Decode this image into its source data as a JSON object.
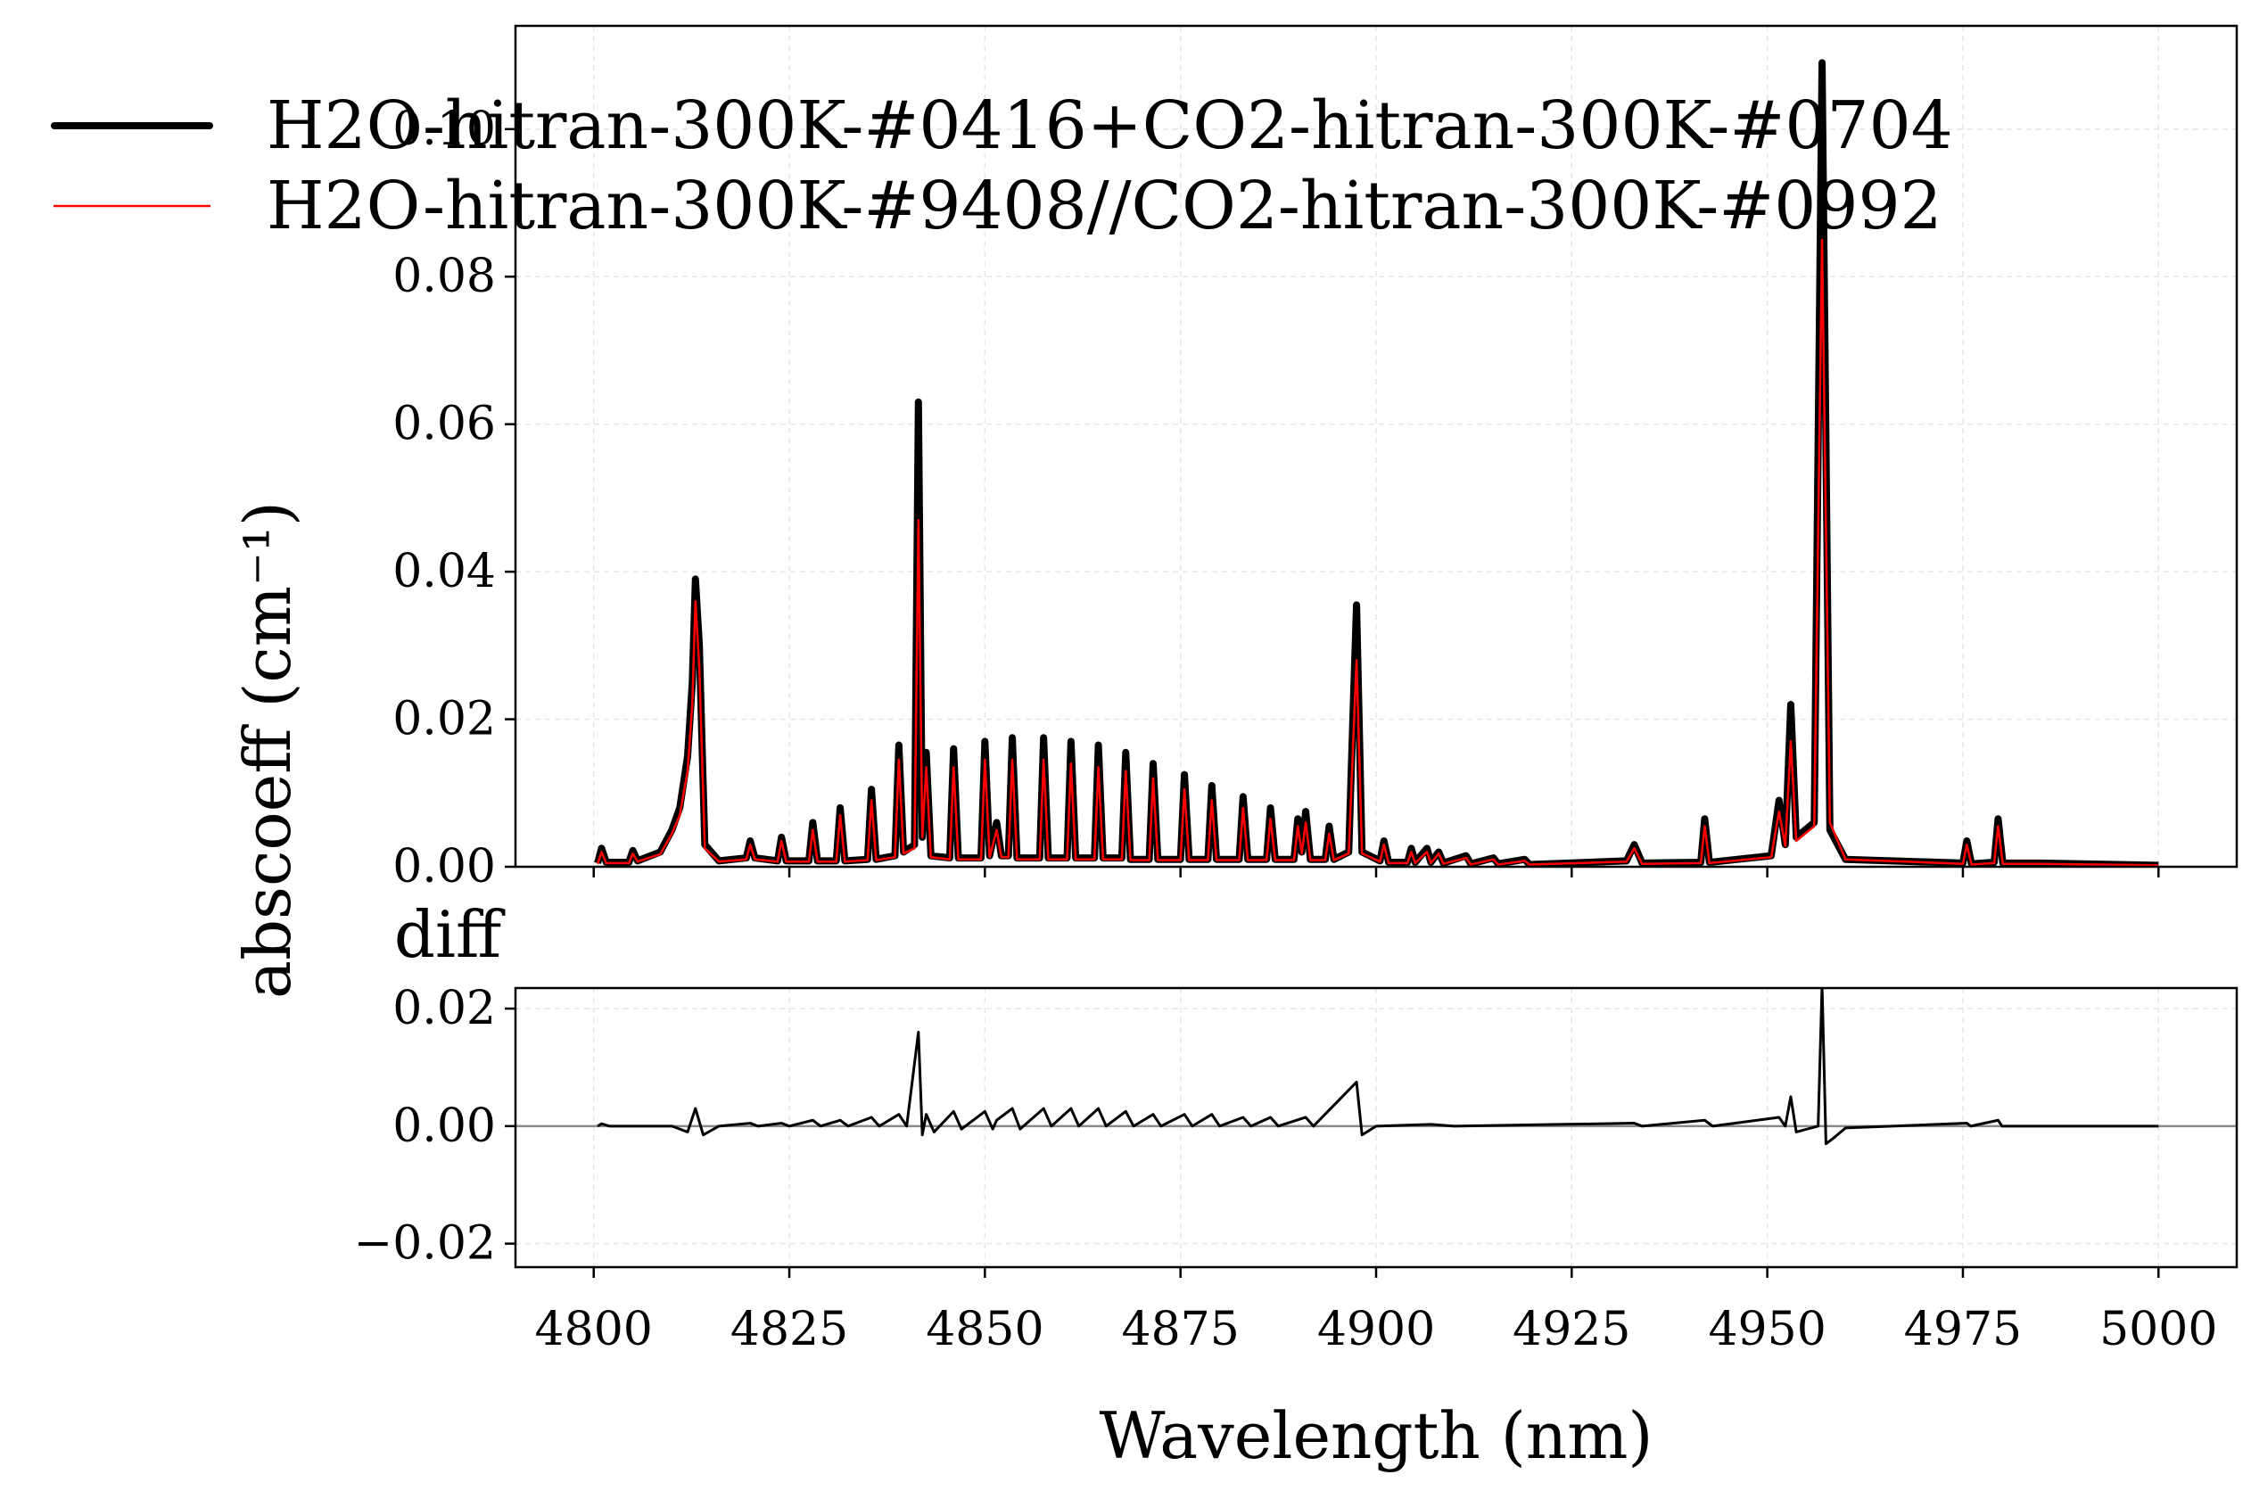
{
  "chart_data": [
    {
      "type": "line",
      "ylabel": "abscoeff (cm⁻¹)",
      "legend_loc": "upper left",
      "grid": true,
      "xlim": [
        4790,
        5010
      ],
      "xticks": [
        4800,
        4825,
        4850,
        4875,
        4900,
        4925,
        4950,
        4975,
        5000
      ],
      "ylim": [
        0,
        0.114
      ],
      "yticks": [
        {
          "value": 0,
          "label": "0.00"
        },
        0.02,
        0.04,
        0.06,
        0.08,
        {
          "value": 0.1,
          "label": "0.10"
        }
      ],
      "x": [
        4800.5,
        4801,
        4801.6,
        4804.5,
        4805,
        4805.6,
        4808.5,
        4810,
        4811,
        4812,
        4812.6,
        4813,
        4813.5,
        4814.2,
        4816,
        4819.5,
        4820,
        4820.6,
        4823.5,
        4824,
        4824.6,
        4827.5,
        4828,
        4828.6,
        4831,
        4831.5,
        4832.1,
        4835,
        4835.5,
        4836.1,
        4838.5,
        4839,
        4839.6,
        4841,
        4841.5,
        4842,
        4842.5,
        4843.1,
        4845.5,
        4846,
        4846.6,
        4849.5,
        4850,
        4850.6,
        4851.5,
        4852.1,
        4853,
        4853.5,
        4854.1,
        4857,
        4857.5,
        4858.1,
        4860.5,
        4861,
        4861.6,
        4864,
        4864.5,
        4865.1,
        4867.5,
        4868,
        4868.6,
        4871,
        4871.5,
        4872.1,
        4875,
        4875.5,
        4876.1,
        4878.5,
        4879,
        4879.6,
        4882.5,
        4883,
        4883.6,
        4886,
        4886.5,
        4887.1,
        4889.5,
        4890,
        4890.5,
        4891,
        4891.6,
        4893.5,
        4894,
        4894.6,
        4896.5,
        4897,
        4897.5,
        4898.2,
        4900.5,
        4901,
        4901.6,
        4904,
        4904.5,
        4905,
        4906.5,
        4907,
        4908,
        4908.6,
        4911.5,
        4912.1,
        4915,
        4915.6,
        4919,
        4919.6,
        4932,
        4933,
        4934,
        4941.5,
        4942,
        4942.6,
        4950.5,
        4951.5,
        4952.3,
        4953,
        4953.7,
        4956,
        4957,
        4958,
        4960,
        4975,
        4975.5,
        4976.1,
        4979,
        4979.5,
        4980.1,
        4985,
        5000
      ],
      "series": [
        {
          "name": "H2O-hitran-300K-#0416+CO2-hitran-300K-#0704",
          "color": "#000000",
          "line_width": 8,
          "values": [
            0.0005,
            0.0025,
            0.0006,
            0.0006,
            0.0022,
            0.0008,
            0.002,
            0.005,
            0.008,
            0.015,
            0.025,
            0.039,
            0.03,
            0.003,
            0.0008,
            0.0012,
            0.0035,
            0.0012,
            0.0008,
            0.004,
            0.0008,
            0.0008,
            0.006,
            0.0008,
            0.0008,
            0.008,
            0.0008,
            0.001,
            0.0105,
            0.001,
            0.0015,
            0.0165,
            0.002,
            0.003,
            0.063,
            0.004,
            0.0155,
            0.0015,
            0.0012,
            0.016,
            0.0012,
            0.0012,
            0.017,
            0.0015,
            0.006,
            0.0015,
            0.0015,
            0.0175,
            0.0012,
            0.0012,
            0.0175,
            0.0012,
            0.0012,
            0.017,
            0.0012,
            0.0012,
            0.0165,
            0.0012,
            0.0012,
            0.0155,
            0.001,
            0.001,
            0.014,
            0.001,
            0.001,
            0.0125,
            0.001,
            0.001,
            0.011,
            0.001,
            0.001,
            0.0095,
            0.001,
            0.001,
            0.008,
            0.001,
            0.001,
            0.0065,
            0.002,
            0.0075,
            0.001,
            0.001,
            0.0055,
            0.001,
            0.002,
            0.019,
            0.0355,
            0.002,
            0.0008,
            0.0035,
            0.0006,
            0.0006,
            0.0025,
            0.0006,
            0.0025,
            0.0006,
            0.002,
            0.0005,
            0.0015,
            0.0004,
            0.0012,
            0.0004,
            0.001,
            0.0003,
            0.0008,
            0.003,
            0.0005,
            0.0006,
            0.0065,
            0.0006,
            0.0015,
            0.009,
            0.003,
            0.022,
            0.004,
            0.006,
            0.109,
            0.005,
            0.001,
            0.0005,
            0.0035,
            0.0004,
            0.0006,
            0.0065,
            0.0005,
            0.0005,
            0.0002
          ]
        },
        {
          "name": "H2O-hitran-300K-#9408//CO2-hitran-300K-#0992",
          "color": "#ff0000",
          "line_width": 2.5,
          "values": [
            0.0004,
            0.002,
            0.0005,
            0.0005,
            0.0018,
            0.0007,
            0.0017,
            0.0045,
            0.007,
            0.013,
            0.022,
            0.036,
            0.027,
            0.0025,
            0.0007,
            0.001,
            0.003,
            0.001,
            0.0007,
            0.0035,
            0.0007,
            0.0007,
            0.005,
            0.0007,
            0.0007,
            0.007,
            0.0007,
            0.0009,
            0.009,
            0.0009,
            0.0013,
            0.0145,
            0.0018,
            0.0025,
            0.047,
            0.004,
            0.0135,
            0.0013,
            0.001,
            0.0135,
            0.001,
            0.001,
            0.0145,
            0.0013,
            0.005,
            0.0013,
            0.0013,
            0.0145,
            0.001,
            0.001,
            0.0145,
            0.001,
            0.001,
            0.014,
            0.001,
            0.001,
            0.0135,
            0.001,
            0.001,
            0.013,
            0.0009,
            0.0009,
            0.012,
            0.0009,
            0.0009,
            0.0105,
            0.0009,
            0.0009,
            0.009,
            0.0009,
            0.0009,
            0.008,
            0.0009,
            0.0009,
            0.0065,
            0.0009,
            0.0009,
            0.0055,
            0.0018,
            0.006,
            0.0009,
            0.0009,
            0.0045,
            0.0009,
            0.0018,
            0.015,
            0.028,
            0.0018,
            0.0007,
            0.003,
            0.0005,
            0.0005,
            0.002,
            0.0005,
            0.002,
            0.0005,
            0.0018,
            0.0004,
            0.0012,
            0.0003,
            0.001,
            0.0003,
            0.0008,
            0.0003,
            0.0007,
            0.0025,
            0.0004,
            0.0005,
            0.0055,
            0.0005,
            0.0013,
            0.0075,
            0.0028,
            0.017,
            0.0035,
            0.0055,
            0.085,
            0.006,
            0.001,
            0.0004,
            0.003,
            0.0003,
            0.0005,
            0.0055,
            0.0004,
            0.0004,
            0.0002
          ]
        }
      ]
    },
    {
      "type": "line",
      "title": "diff",
      "xlabel": "Wavelength (nm)",
      "grid": true,
      "xlim": [
        4790,
        5010
      ],
      "xticks": [
        4800,
        4825,
        4850,
        4875,
        4900,
        4925,
        4950,
        4975,
        5000
      ],
      "ylim": [
        -0.024,
        0.0235
      ],
      "yticks": [
        {
          "value": -0.02,
          "label": "−0.02"
        },
        {
          "value": 0,
          "label": "0.00"
        },
        0.02
      ],
      "x": [
        4800.5,
        4801,
        4802,
        4810,
        4812,
        4813,
        4814,
        4816,
        4820,
        4821,
        4824,
        4825,
        4828,
        4829,
        4831.5,
        4832.5,
        4835.5,
        4836.5,
        4839,
        4840,
        4841.5,
        4842,
        4842.5,
        4843.5,
        4846,
        4847,
        4850,
        4851,
        4851.5,
        4853.5,
        4854.5,
        4857.5,
        4858.5,
        4861,
        4862,
        4864.5,
        4865.5,
        4868,
        4869,
        4871.5,
        4872.5,
        4875.5,
        4876.5,
        4879,
        4880,
        4883,
        4884,
        4886.5,
        4887.5,
        4891,
        4892,
        4897.5,
        4898.2,
        4900,
        4907,
        4910,
        4933,
        4934,
        4942,
        4943,
        4951.5,
        4952.3,
        4953,
        4953.7,
        4956.5,
        4957,
        4957.5,
        4958.5,
        4960,
        4975.5,
        4976,
        4979.5,
        4980,
        5000
      ],
      "series": [
        {
          "name": "diff",
          "color": "#000000",
          "line_width": 3,
          "values": [
            0,
            0.0004,
            0,
            0,
            -0.001,
            0.003,
            -0.0015,
            0,
            0.0005,
            0,
            0.0005,
            0,
            0.001,
            0,
            0.001,
            0,
            0.0015,
            0,
            0.002,
            0,
            0.016,
            -0.0015,
            0.002,
            -0.001,
            0.0025,
            -0.0005,
            0.0025,
            -0.0005,
            0.001,
            0.003,
            -0.0005,
            0.003,
            0,
            0.003,
            0,
            0.003,
            0,
            0.0025,
            0,
            0.002,
            0,
            0.002,
            0,
            0.002,
            0,
            0.0015,
            0,
            0.0015,
            0,
            0.0015,
            0,
            0.0075,
            -0.0015,
            0,
            0.0003,
            0,
            0.0005,
            0,
            0.001,
            0,
            0.0015,
            0,
            0.005,
            -0.001,
            0,
            0.024,
            -0.003,
            -0.002,
            -0.0003,
            0.0005,
            0,
            0.001,
            0,
            0
          ]
        }
      ]
    }
  ]
}
